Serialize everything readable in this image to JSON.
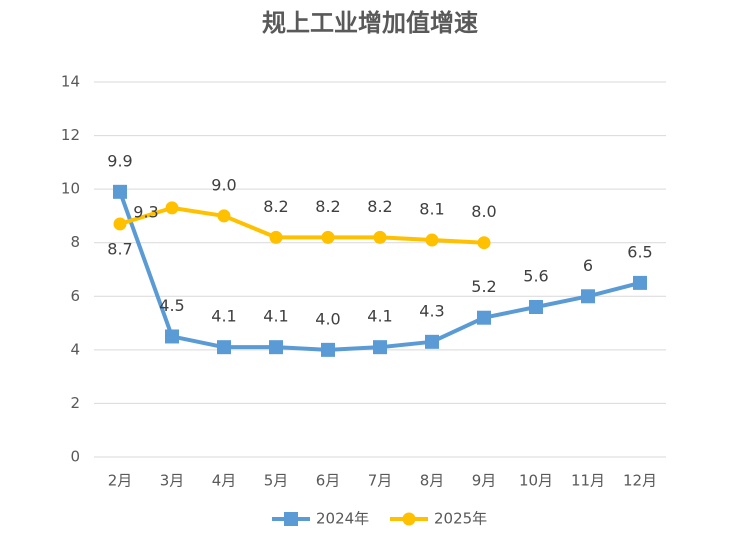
{
  "chart_data": {
    "type": "line",
    "title": "规上工业增加值增速",
    "categories": [
      "2月",
      "3月",
      "4月",
      "5月",
      "6月",
      "7月",
      "8月",
      "9月",
      "10月",
      "11月",
      "12月"
    ],
    "series": [
      {
        "name": "2024年",
        "color": "#5b9bd5",
        "marker": "square",
        "values": [
          9.9,
          4.5,
          4.1,
          4.1,
          4.0,
          4.1,
          4.3,
          5.2,
          5.6,
          6,
          6.5
        ],
        "value_labels": [
          "9.9",
          "4.5",
          "4.1",
          "4.1",
          "4.0",
          "4.1",
          "4.3",
          "5.2",
          "5.6",
          "6",
          "6.5"
        ]
      },
      {
        "name": "2025年",
        "color": "#ffc000",
        "marker": "circle",
        "values": [
          8.7,
          9.3,
          9.0,
          8.2,
          8.2,
          8.2,
          8.1,
          8.0,
          null,
          null,
          null
        ],
        "value_labels": [
          "8.7",
          "9.3",
          "9.0",
          "8.2",
          "8.2",
          "8.2",
          "8.1",
          "8.0",
          null,
          null,
          null
        ]
      }
    ],
    "ylim": [
      0,
      14
    ],
    "yticks": [
      0,
      2,
      4,
      6,
      8,
      10,
      12,
      14
    ],
    "grid": true,
    "legend": "bottom"
  }
}
